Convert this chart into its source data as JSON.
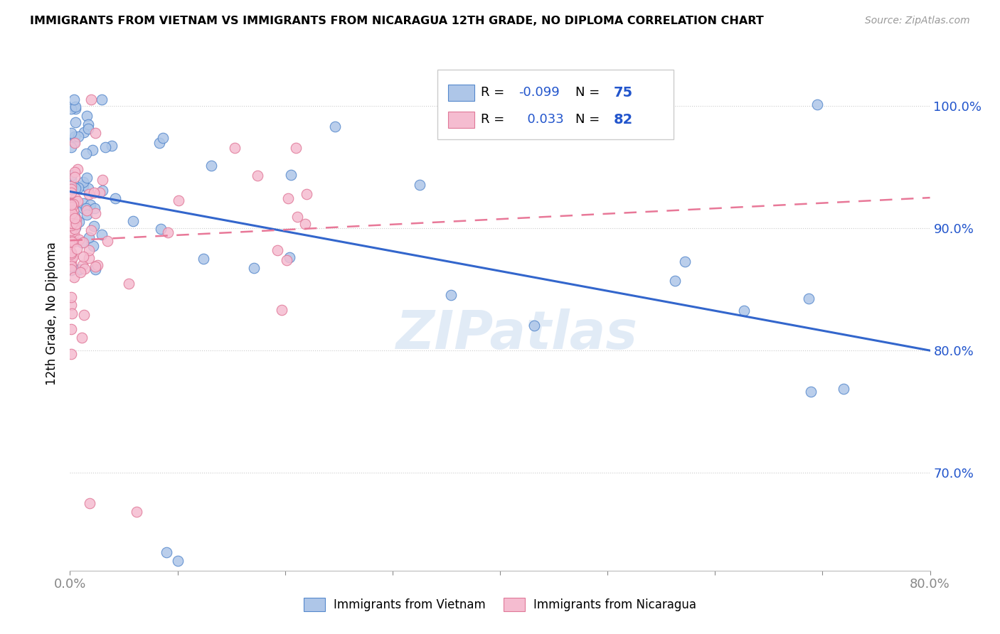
{
  "title": "IMMIGRANTS FROM VIETNAM VS IMMIGRANTS FROM NICARAGUA 12TH GRADE, NO DIPLOMA CORRELATION CHART",
  "source": "Source: ZipAtlas.com",
  "ylabel": "12th Grade, No Diploma",
  "ytick_labels": [
    "70.0%",
    "80.0%",
    "90.0%",
    "100.0%"
  ],
  "ytick_values": [
    0.7,
    0.8,
    0.9,
    1.0
  ],
  "xlim": [
    0.0,
    0.8
  ],
  "ylim": [
    0.62,
    1.04
  ],
  "vietnam_color": "#aec6e8",
  "vietnam_edge_color": "#5588cc",
  "nicaragua_color": "#f5bcd0",
  "nicaragua_edge_color": "#e07898",
  "vietnam_R": -0.099,
  "vietnam_N": 75,
  "nicaragua_R": 0.033,
  "nicaragua_N": 82,
  "legend_R_color": "#2255cc",
  "watermark": "ZIPatlas",
  "viet_line_color": "#3366cc",
  "nica_line_color": "#e87898",
  "grid_color": "#cccccc",
  "axis_color": "#2255cc"
}
